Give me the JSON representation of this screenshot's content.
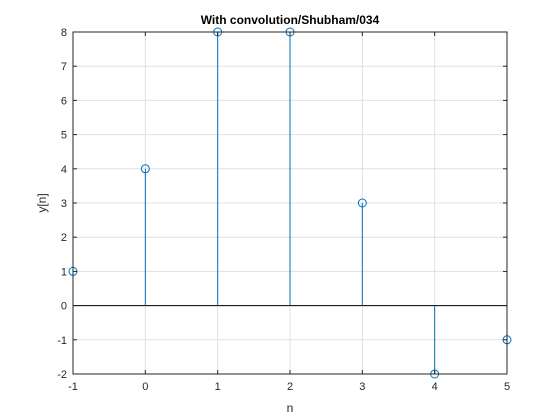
{
  "chart_data": {
    "type": "stem",
    "title": "With convolution/Shubham/034",
    "xlabel": "n",
    "ylabel": "y[n]",
    "x": [
      -1,
      0,
      1,
      2,
      3,
      4,
      5
    ],
    "y": [
      1,
      4,
      8,
      8,
      3,
      -2,
      -1
    ],
    "xlim": [
      -1,
      5
    ],
    "ylim": [
      -2,
      8
    ],
    "xticks": [
      -1,
      0,
      1,
      2,
      3,
      4,
      5
    ],
    "xtick_labels": [
      "-1",
      "0",
      "1",
      "2",
      "3",
      "4",
      "5"
    ],
    "yticks": [
      -2,
      -1,
      0,
      1,
      2,
      3,
      4,
      5,
      6,
      7,
      8
    ],
    "ytick_labels": [
      "-2",
      "-1",
      "0",
      "1",
      "2",
      "3",
      "4",
      "5",
      "6",
      "7",
      "8"
    ],
    "grid": true,
    "marker": "circle-open",
    "stem_color": "#0072BD",
    "baseline_color": "#000000",
    "grid_color": "#E0E0E0",
    "axes_color": "#262626"
  }
}
